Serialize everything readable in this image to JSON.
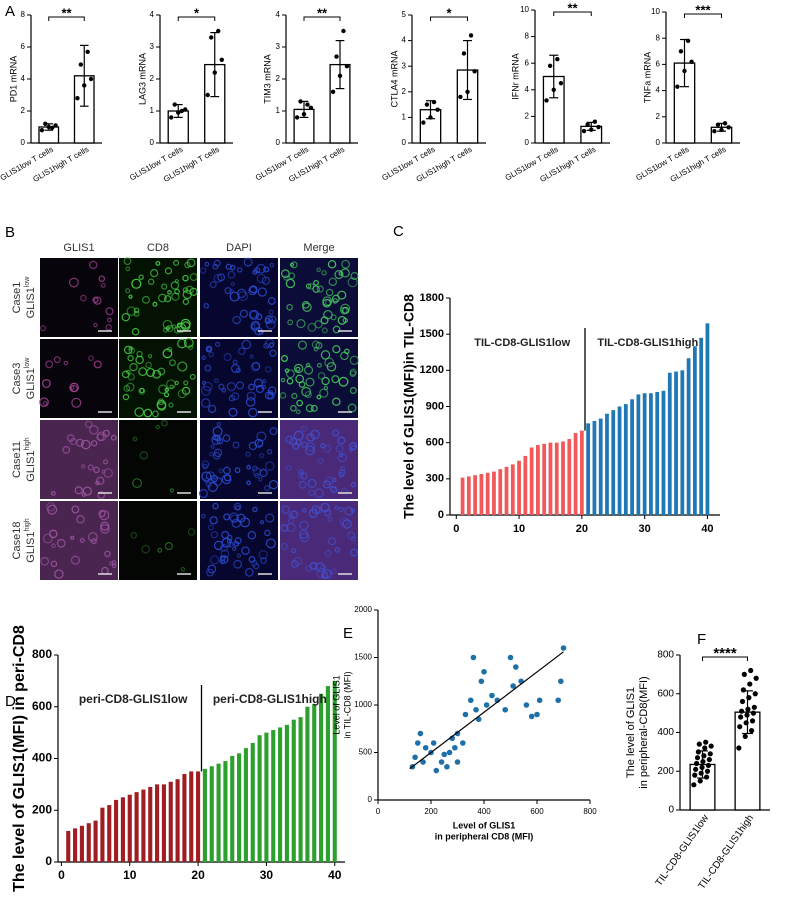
{
  "panel_labels": [
    "A",
    "B",
    "C",
    "D",
    "E",
    "F"
  ],
  "image_grid": {
    "columns": [
      "GLIS1",
      "CD8",
      "DAPI",
      "Merge"
    ],
    "rows": [
      {
        "case": "Case1",
        "marker": "GLIS1",
        "level": "low"
      },
      {
        "case": "Case3",
        "marker": "GLIS1",
        "level": "low"
      },
      {
        "case": "Case11",
        "marker": "GLIS1",
        "level": "high"
      },
      {
        "case": "Case18",
        "marker": "GLIS1",
        "level": "high"
      }
    ]
  },
  "chart_data": [
    {
      "type": "bar_dots",
      "ylabel": "PD1 mRNA",
      "categories": [
        "GLIS1low T cells",
        "GLIS1high T cells"
      ],
      "values": [
        1.0,
        4.2
      ],
      "errors": [
        0.2,
        1.9
      ],
      "points": [
        [
          0.8,
          1.0,
          1.1,
          1.2,
          0.95
        ],
        [
          2.8,
          3.6,
          4.0,
          4.9,
          5.7
        ]
      ],
      "significance": "**",
      "ylim": [
        0,
        8
      ],
      "yticks": [
        0,
        2,
        4,
        6,
        8
      ],
      "bar_color": "#ffffff",
      "point_color": "#000000"
    },
    {
      "type": "bar_dots",
      "ylabel": "LAG3 mRNA",
      "categories": [
        "GLIS1low T cells",
        "GLIS1high T cells"
      ],
      "values": [
        1.0,
        2.45
      ],
      "errors": [
        0.2,
        1.0
      ],
      "points": [
        [
          0.8,
          0.95,
          1.05,
          1.2,
          1.0
        ],
        [
          1.5,
          2.2,
          2.6,
          3.3,
          3.5
        ]
      ],
      "significance": "*",
      "ylim": [
        0,
        4
      ],
      "yticks": [
        0,
        1,
        2,
        3,
        4
      ],
      "bar_color": "#ffffff",
      "point_color": "#000000"
    },
    {
      "type": "bar_dots",
      "ylabel": "TIM3 mRNA",
      "categories": [
        "GLIS1low T cells",
        "GLIS1high T cells"
      ],
      "values": [
        1.05,
        2.45
      ],
      "errors": [
        0.25,
        0.75
      ],
      "points": [
        [
          0.8,
          0.9,
          1.1,
          1.3,
          1.2
        ],
        [
          1.6,
          2.1,
          2.4,
          2.7,
          3.5
        ]
      ],
      "significance": "**",
      "ylim": [
        0,
        4
      ],
      "yticks": [
        0,
        1,
        2,
        3,
        4
      ],
      "bar_color": "#ffffff",
      "point_color": "#000000"
    },
    {
      "type": "bar_dots",
      "ylabel": "CTLA4 mRNA",
      "categories": [
        "GLIS1low T cells",
        "GLIS1high T cells"
      ],
      "values": [
        1.3,
        2.85
      ],
      "errors": [
        0.35,
        1.15
      ],
      "points": [
        [
          0.8,
          1.0,
          1.3,
          1.5,
          1.6
        ],
        [
          1.8,
          2.0,
          2.8,
          3.5,
          4.2
        ]
      ],
      "significance": "*",
      "ylim": [
        0,
        5
      ],
      "yticks": [
        0,
        1,
        2,
        3,
        4,
        5
      ],
      "bar_color": "#ffffff",
      "point_color": "#000000"
    },
    {
      "type": "bar_dots",
      "ylabel": "IFNr mRNA",
      "categories": [
        "GLIS1low T cells",
        "GLIS1high T cells"
      ],
      "values": [
        5.0,
        1.25
      ],
      "errors": [
        1.6,
        0.3
      ],
      "points": [
        [
          3.2,
          4.0,
          4.5,
          5.8,
          6.3
        ],
        [
          0.9,
          1.0,
          1.2,
          1.4,
          1.6
        ]
      ],
      "significance": "**",
      "ylim": [
        0,
        10
      ],
      "yticks": [
        0,
        2,
        4,
        6,
        8,
        10
      ],
      "bar_color": "#ffffff",
      "point_color": "#000000"
    },
    {
      "type": "bar_dots",
      "ylabel": "TNFa mRNA",
      "categories": [
        "GLIS1low T cells",
        "GLIS1high T cells"
      ],
      "values": [
        6.1,
        1.2
      ],
      "errors": [
        1.8,
        0.3
      ],
      "points": [
        [
          4.3,
          5.5,
          6.2,
          7.0,
          7.8
        ],
        [
          0.9,
          1.0,
          1.2,
          1.4,
          1.5
        ]
      ],
      "significance": "***",
      "ylim": [
        0,
        10
      ],
      "yticks": [
        0,
        2,
        4,
        6,
        8,
        10
      ],
      "bar_color": "#ffffff",
      "point_color": "#000000"
    },
    {
      "type": "bar",
      "ylabel": "The level of GLIS1(MFI)in TIL-CD8",
      "annotations": [
        "TIL-CD8-GLIS1low",
        "TIL-CD8-GLIS1high"
      ],
      "series": [
        {
          "color": "#f0585a",
          "x": [
            1,
            2,
            3,
            4,
            5,
            6,
            7,
            8,
            9,
            10,
            11,
            12,
            13,
            14,
            15,
            16,
            17,
            18,
            19,
            20
          ],
          "values": [
            310,
            320,
            330,
            340,
            350,
            360,
            380,
            400,
            420,
            450,
            490,
            560,
            580,
            590,
            600,
            600,
            610,
            630,
            680,
            700
          ]
        },
        {
          "color": "#1f77b4",
          "x": [
            21,
            22,
            23,
            24,
            25,
            26,
            27,
            28,
            29,
            30,
            31,
            32,
            33,
            34,
            35,
            36,
            37,
            38,
            39,
            40
          ],
          "values": [
            760,
            780,
            800,
            840,
            870,
            900,
            920,
            960,
            1000,
            1010,
            1010,
            1020,
            1030,
            1180,
            1190,
            1200,
            1300,
            1400,
            1470,
            1590
          ]
        }
      ],
      "xlim": [
        -1,
        42
      ],
      "xticks": [
        0,
        10,
        20,
        30,
        40
      ],
      "ylim": [
        0,
        1800
      ],
      "yticks": [
        0,
        300,
        600,
        900,
        1200,
        1500,
        1800
      ]
    },
    {
      "type": "bar",
      "ylabel": "The level of GLIS1(MFI) in peri-CD8",
      "annotations": [
        "peri-CD8-GLIS1low",
        "peri-CD8-GLIS1high"
      ],
      "series": [
        {
          "color": "#a01e22",
          "x": [
            1,
            2,
            3,
            4,
            5,
            6,
            7,
            8,
            9,
            10,
            11,
            12,
            13,
            14,
            15,
            16,
            17,
            18,
            19,
            20
          ],
          "values": [
            120,
            130,
            140,
            150,
            160,
            210,
            220,
            240,
            250,
            260,
            270,
            280,
            290,
            300,
            300,
            310,
            320,
            340,
            350,
            350
          ]
        },
        {
          "color": "#2ca02c",
          "x": [
            21,
            22,
            23,
            24,
            25,
            26,
            27,
            28,
            29,
            30,
            31,
            32,
            33,
            34,
            35,
            36,
            37,
            38,
            39,
            40
          ],
          "values": [
            360,
            370,
            380,
            390,
            410,
            420,
            440,
            460,
            490,
            500,
            510,
            520,
            530,
            550,
            560,
            600,
            610,
            650,
            680,
            700
          ]
        }
      ],
      "xlim": [
        -0.5,
        41.5
      ],
      "xticks": [
        0,
        10,
        20,
        30,
        40
      ],
      "ylim": [
        0,
        800
      ],
      "yticks": [
        0,
        200,
        400,
        600,
        800
      ]
    },
    {
      "type": "scatter",
      "xlabel": [
        "Level of GLIS1",
        "in peripheral CD8 (MFI)"
      ],
      "ylabel": [
        "Level of GLIS1",
        "in TIL-CD8 (MFI)"
      ],
      "color": "#1f6fa8",
      "x": [
        130,
        140,
        150,
        160,
        170,
        180,
        200,
        210,
        220,
        240,
        250,
        260,
        270,
        280,
        290,
        300,
        300,
        320,
        330,
        350,
        360,
        370,
        380,
        390,
        400,
        410,
        430,
        450,
        480,
        500,
        510,
        520,
        540,
        560,
        580,
        600,
        610,
        680,
        690,
        700
      ],
      "y": [
        350,
        450,
        600,
        700,
        400,
        550,
        500,
        600,
        310,
        400,
        480,
        350,
        500,
        650,
        550,
        700,
        400,
        600,
        900,
        1050,
        1500,
        950,
        850,
        1250,
        1350,
        1000,
        1100,
        1050,
        950,
        1500,
        1200,
        1400,
        1250,
        1000,
        880,
        900,
        1050,
        1050,
        1250,
        1600
      ],
      "fit": {
        "x": [
          120,
          700
        ],
        "y": [
          330,
          1560
        ]
      },
      "xlim": [
        0,
        800
      ],
      "xticks": [
        0,
        200,
        400,
        600,
        800
      ],
      "ylim": [
        0,
        2000
      ],
      "yticks": [
        0,
        500,
        1000,
        1500,
        2000
      ]
    },
    {
      "type": "bar_dots",
      "ylabel": [
        "The level of GLIS1",
        "in peripheral-CD8(MFI)"
      ],
      "categories": [
        "TIL-CD8-GLIS1low",
        "TIL-CD8-GLIS1high"
      ],
      "values": [
        235,
        505
      ],
      "errors": [
        70,
        110
      ],
      "points": [
        [
          130,
          150,
          170,
          180,
          190,
          200,
          210,
          220,
          230,
          240,
          250,
          260,
          270,
          280,
          290,
          300,
          320,
          330,
          340,
          350
        ],
        [
          320,
          380,
          410,
          430,
          450,
          460,
          480,
          490,
          500,
          510,
          520,
          530,
          560,
          580,
          600,
          620,
          650,
          680,
          700,
          720
        ]
      ],
      "significance": "****",
      "ylim": [
        0,
        800
      ],
      "yticks": [
        0,
        200,
        400,
        600,
        800
      ],
      "bar_color": "#ffffff",
      "point_color": "#000000"
    }
  ]
}
